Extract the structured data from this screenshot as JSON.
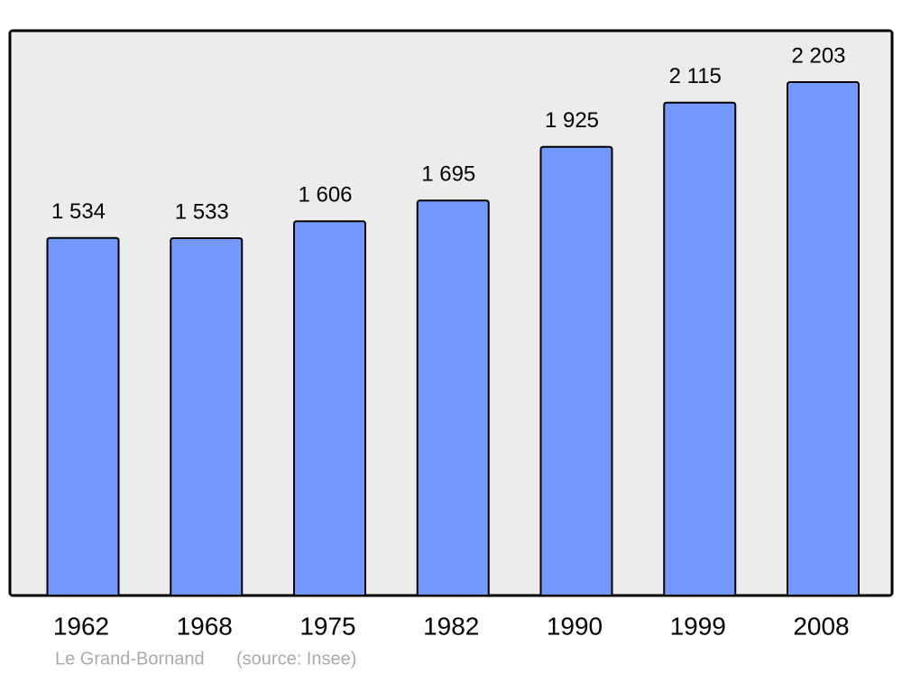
{
  "chart_data": {
    "type": "bar",
    "title": "Le Grand-Bornand",
    "source": "(source: Insee)",
    "categories": [
      "1962",
      "1968",
      "1975",
      "1982",
      "1990",
      "1999",
      "2008"
    ],
    "values": [
      1534,
      1533,
      1606,
      1695,
      1925,
      2115,
      2203
    ],
    "value_labels": [
      "1 534",
      "1 533",
      "1 606",
      "1 695",
      "1 925",
      "2 115",
      "2 203"
    ],
    "color": "#7399ff"
  }
}
